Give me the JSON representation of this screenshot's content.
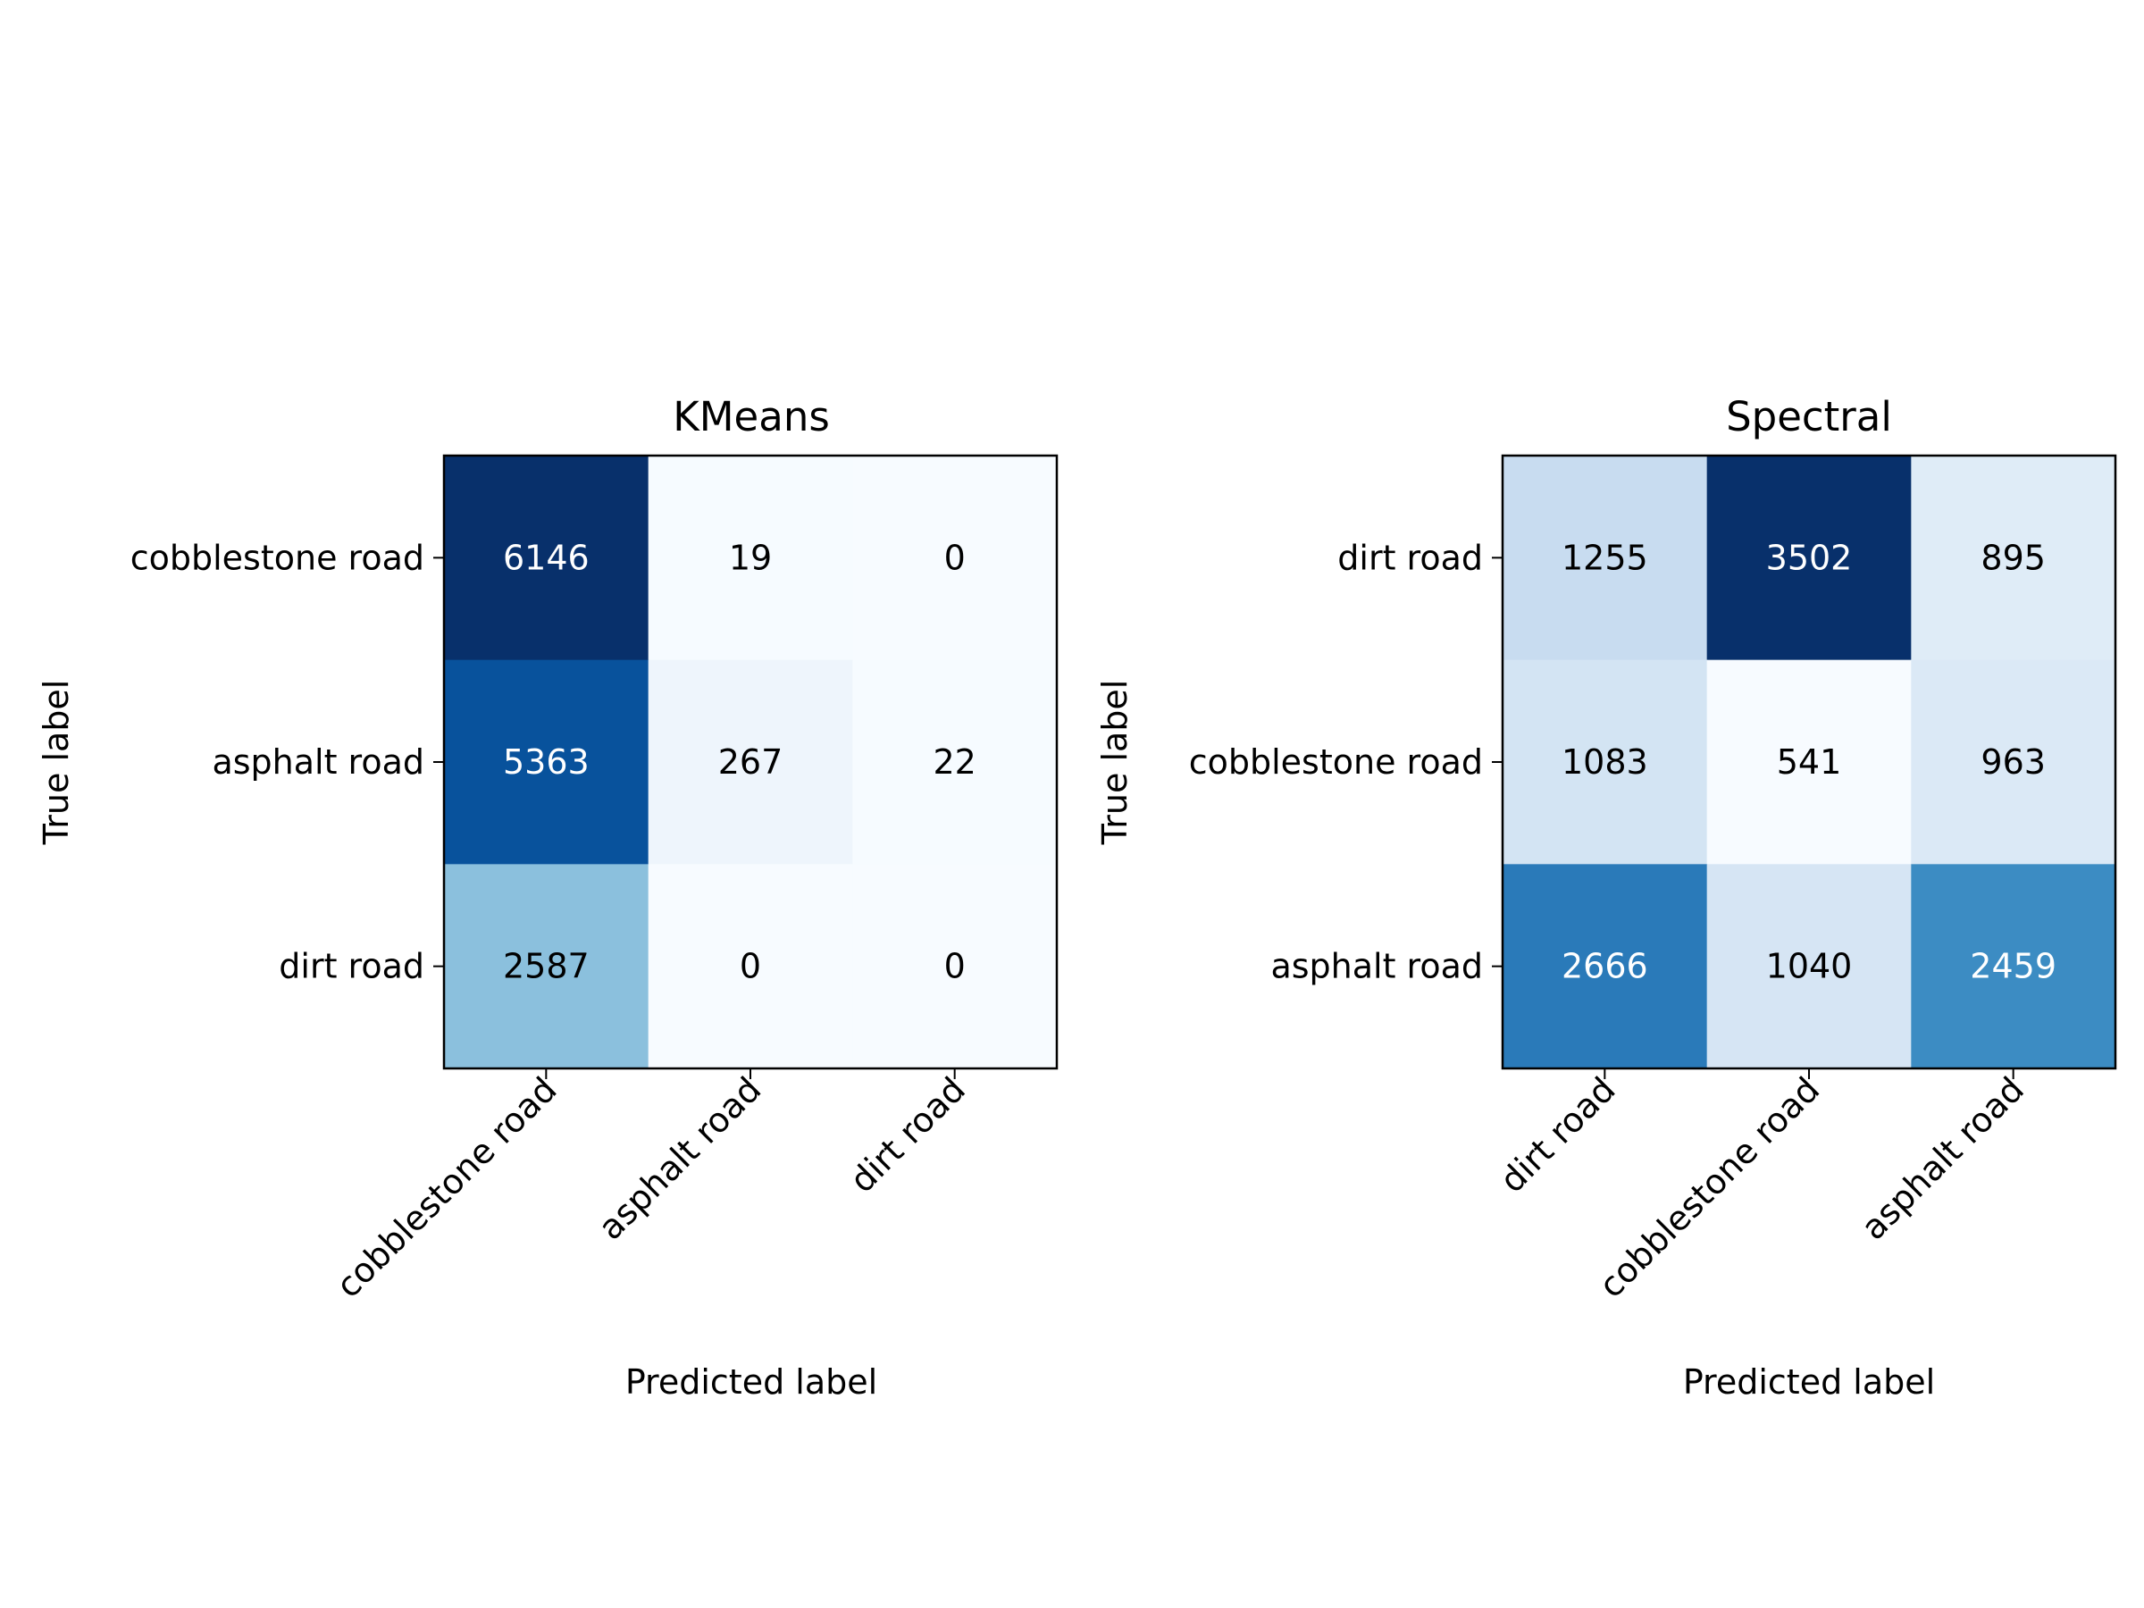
{
  "chart_data": [
    {
      "type": "heatmap",
      "title": "KMeans",
      "xlabel": "Predicted label",
      "ylabel": "True label",
      "x_categories": [
        "cobblestone road",
        "asphalt road",
        "dirt road"
      ],
      "y_categories": [
        "cobblestone road",
        "asphalt road",
        "dirt road"
      ],
      "values": [
        [
          6146,
          19,
          0
        ],
        [
          5363,
          267,
          22
        ],
        [
          2587,
          0,
          0
        ]
      ],
      "colormap": "Blues",
      "grid": false
    },
    {
      "type": "heatmap",
      "title": "Spectral",
      "xlabel": "Predicted label",
      "ylabel": "True label",
      "x_categories": [
        "dirt road",
        "cobblestone road",
        "asphalt road"
      ],
      "y_categories": [
        "dirt road",
        "cobblestone road",
        "asphalt road"
      ],
      "values": [
        [
          1255,
          3502,
          895
        ],
        [
          1083,
          541,
          963
        ],
        [
          2666,
          1040,
          2459
        ]
      ],
      "colormap": "Blues",
      "grid": false
    }
  ]
}
